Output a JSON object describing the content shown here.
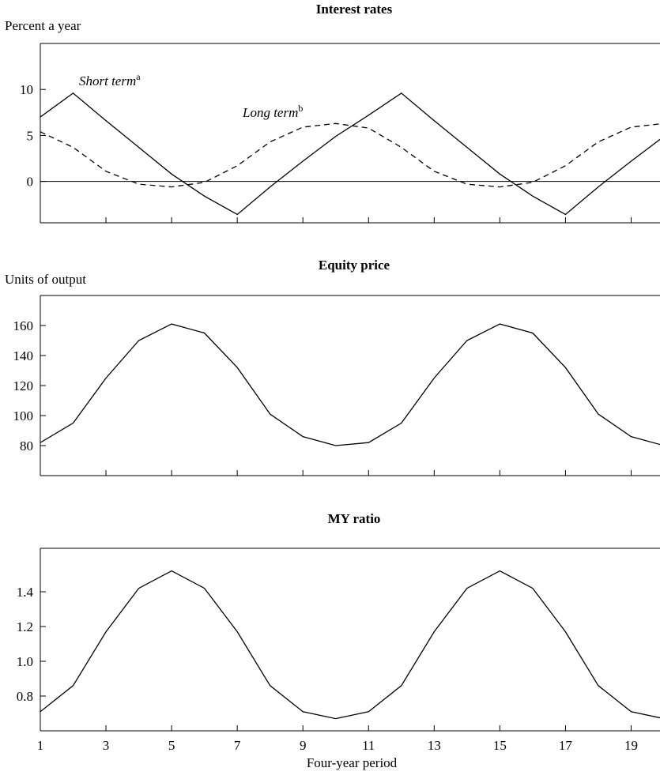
{
  "chart_data": [
    {
      "type": "line",
      "title": "Interest rates",
      "ylabel": "Percent a year",
      "xlim": [
        1,
        20
      ],
      "ylim": [
        -4.5,
        15
      ],
      "yticks": [
        0,
        5,
        10
      ],
      "x": [
        1,
        2,
        3,
        4,
        5,
        6,
        7,
        8,
        9,
        10,
        11,
        12,
        13,
        14,
        15,
        16,
        17,
        18,
        19,
        20
      ],
      "reference_line": 0,
      "grid": false,
      "series": [
        {
          "name": "Short term",
          "superscript": "a",
          "style": "solid",
          "values": [
            7.0,
            9.6,
            6.6,
            3.7,
            0.8,
            -1.6,
            -3.6,
            -0.6,
            2.2,
            4.9,
            7.2,
            9.6,
            6.6,
            3.7,
            0.8,
            -1.6,
            -3.6,
            -0.6,
            2.2,
            4.9
          ]
        },
        {
          "name": "Long term",
          "superscript": "b",
          "style": "dashed",
          "values": [
            5.4,
            3.7,
            1.1,
            -0.3,
            -0.6,
            -0.1,
            1.7,
            4.3,
            5.9,
            6.3,
            5.8,
            3.7,
            1.1,
            -0.3,
            -0.6,
            -0.1,
            1.7,
            4.3,
            5.9,
            6.3
          ]
        }
      ]
    },
    {
      "type": "line",
      "title": "Equity price",
      "ylabel": "Units of output",
      "xlim": [
        1,
        20
      ],
      "ylim": [
        60,
        180
      ],
      "yticks": [
        80,
        100,
        120,
        140,
        160
      ],
      "x": [
        1,
        2,
        3,
        4,
        5,
        6,
        7,
        8,
        9,
        10,
        11,
        12,
        13,
        14,
        15,
        16,
        17,
        18,
        19,
        20
      ],
      "grid": false,
      "series": [
        {
          "style": "solid",
          "values": [
            82,
            95,
            125,
            150,
            161,
            155,
            132,
            101,
            86,
            80,
            82,
            95,
            125,
            150,
            161,
            155,
            132,
            101,
            86,
            80
          ]
        }
      ]
    },
    {
      "type": "line",
      "title": "MY ratio",
      "xlabel": "Four-year period",
      "xlim": [
        1,
        20
      ],
      "ylim": [
        0.6,
        1.65
      ],
      "yticks": [
        0.8,
        1.0,
        1.2,
        1.4
      ],
      "ytick_labels": [
        "0.8",
        "1.0",
        "1.2",
        "1.4"
      ],
      "xticks": [
        1,
        3,
        5,
        7,
        9,
        11,
        13,
        15,
        17,
        19
      ],
      "x": [
        1,
        2,
        3,
        4,
        5,
        6,
        7,
        8,
        9,
        10,
        11,
        12,
        13,
        14,
        15,
        16,
        17,
        18,
        19,
        20
      ],
      "grid": false,
      "series": [
        {
          "style": "solid",
          "values": [
            0.71,
            0.86,
            1.17,
            1.42,
            1.52,
            1.42,
            1.17,
            0.86,
            0.71,
            0.67,
            0.71,
            0.86,
            1.17,
            1.42,
            1.52,
            1.42,
            1.17,
            0.86,
            0.71,
            0.67
          ]
        }
      ]
    }
  ]
}
